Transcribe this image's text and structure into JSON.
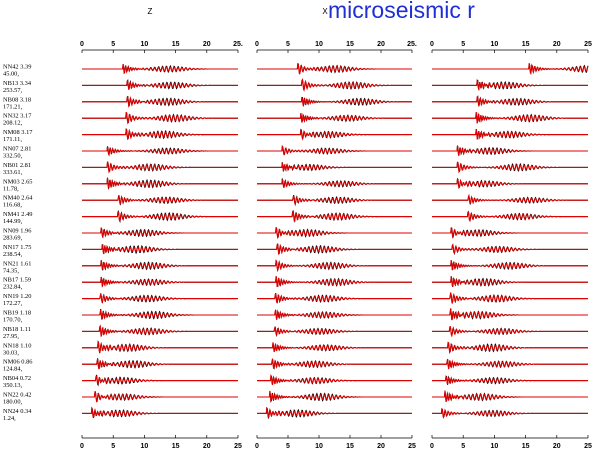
{
  "title": "microseismic r",
  "colors": {
    "title": "#1f2fd6",
    "observed": "#000000",
    "synthetic": "#e00000",
    "axis": "#000000"
  },
  "chart_data": {
    "type": "line",
    "panels": [
      {
        "component_label": "Z",
        "xlim": [
          0,
          25
        ]
      },
      {
        "component_label": "X",
        "xlim": [
          0,
          25
        ]
      },
      {
        "component_label": "",
        "xlim": [
          0,
          25
        ]
      }
    ],
    "x_ticks": [
      "0",
      "5",
      "10",
      "15",
      "20",
      "25"
    ],
    "series": [
      {
        "name": "observed",
        "color": "#000000"
      },
      {
        "name": "synthetic",
        "color": "#e00000"
      }
    ],
    "stations": [
      {
        "name": "NN42",
        "dist": "3.39",
        "az": "45.00"
      },
      {
        "name": "NB13",
        "dist": "3.34",
        "az": "253.57"
      },
      {
        "name": "NB08",
        "dist": "3.18",
        "az": "171.21"
      },
      {
        "name": "NN32",
        "dist": "3.17",
        "az": "208.12"
      },
      {
        "name": "NM08",
        "dist": "3.17",
        "az": "171.11"
      },
      {
        "name": "NN07",
        "dist": "2.81",
        "az": "332.50"
      },
      {
        "name": "NB01",
        "dist": "2.81",
        "az": "333.61"
      },
      {
        "name": "NM03",
        "dist": "2.65",
        "az": "11.78"
      },
      {
        "name": "NM40",
        "dist": "2.64",
        "az": "116.68"
      },
      {
        "name": "NM41",
        "dist": "2.49",
        "az": "144.99"
      },
      {
        "name": "NN09",
        "dist": "1.96",
        "az": "283.69"
      },
      {
        "name": "NN17",
        "dist": "1.75",
        "az": "238.54"
      },
      {
        "name": "NN21",
        "dist": "1.61",
        "az": "74.35"
      },
      {
        "name": "NB17",
        "dist": "1.59",
        "az": "232.84"
      },
      {
        "name": "NN19",
        "dist": "1.20",
        "az": "172.27"
      },
      {
        "name": "NB19",
        "dist": "1.18",
        "az": "170.70"
      },
      {
        "name": "NB18",
        "dist": "1.11",
        "az": "27.95"
      },
      {
        "name": "NN18",
        "dist": "1.10",
        "az": "30.03"
      },
      {
        "name": "NM06",
        "dist": "0.86",
        "az": "124.84"
      },
      {
        "name": "NB04",
        "dist": "0.72",
        "az": "350.13"
      },
      {
        "name": "NN22",
        "dist": "0.42",
        "az": "180.00"
      },
      {
        "name": "NN24",
        "dist": "0.34",
        "az": "1.24"
      }
    ],
    "arrival_time_s": [
      6.5,
      7.2,
      7.2,
      7.0,
      7.0,
      4.0,
      4.0,
      4.0,
      5.8,
      5.7,
      3.0,
      3.2,
      3.0,
      3.0,
      2.9,
      2.9,
      2.8,
      2.5,
      2.4,
      2.2,
      2.0,
      1.5
    ],
    "grid": false
  }
}
